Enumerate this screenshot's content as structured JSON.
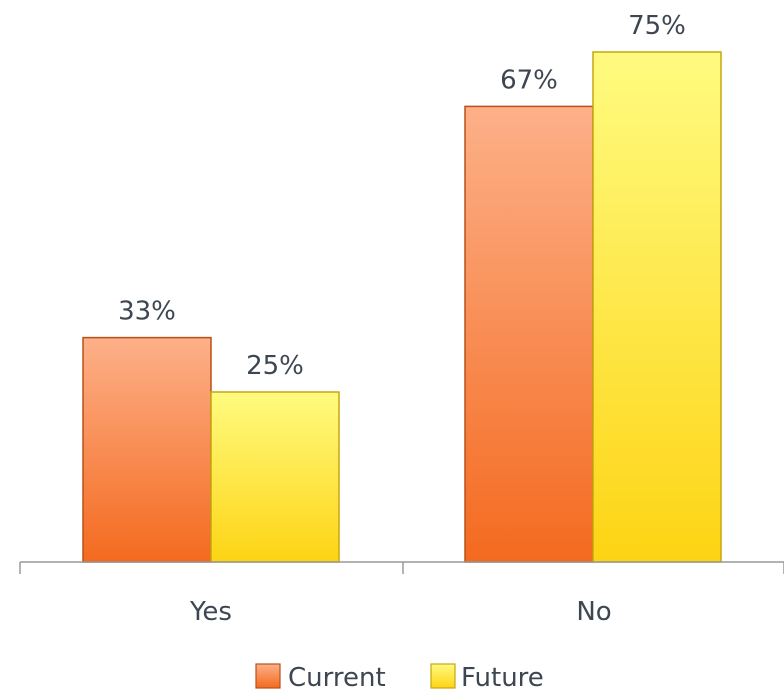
{
  "chart_data": {
    "type": "bar",
    "title": "",
    "xlabel": "",
    "ylabel": "",
    "categories": [
      "Yes",
      "No"
    ],
    "series": [
      {
        "name": "Current",
        "values": [
          33,
          67
        ],
        "labels": [
          "33%",
          "67%"
        ],
        "color_light": "#fdb089",
        "color_dark": "#f46a1f",
        "stroke": "#b8501a"
      },
      {
        "name": "Future",
        "values": [
          25,
          75
        ],
        "labels": [
          "25%",
          "75%"
        ],
        "color_light": "#fffb80",
        "color_dark": "#fdd414",
        "stroke": "#c9a50f"
      }
    ],
    "ylim": [
      0,
      75
    ],
    "grid": false,
    "y_axis_visible": false,
    "legend_position": "bottom"
  }
}
